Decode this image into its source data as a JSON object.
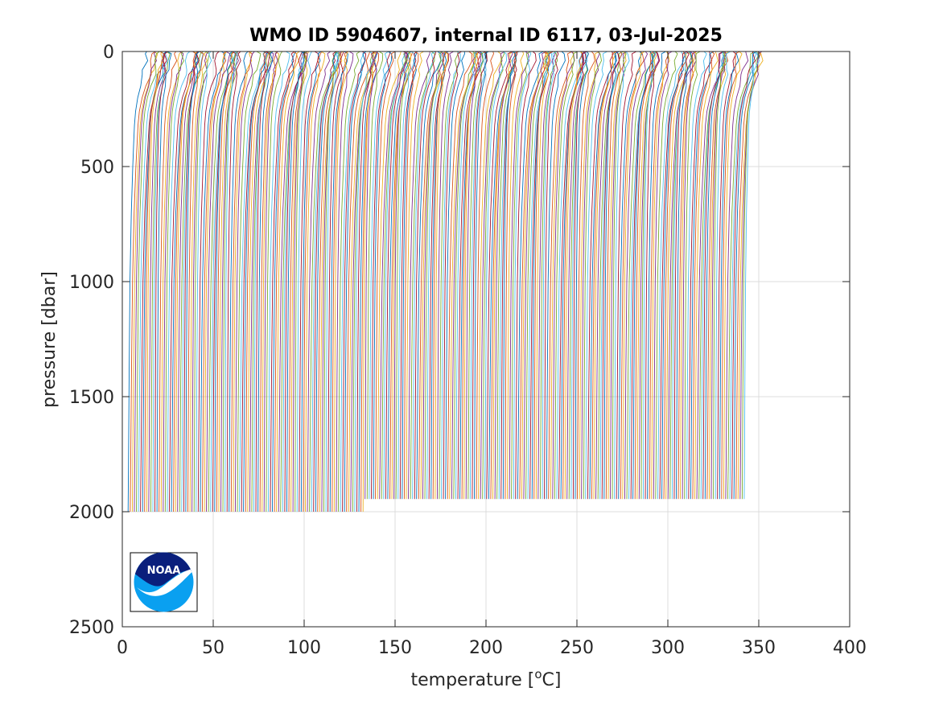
{
  "chart_data": {
    "type": "line",
    "title": "WMO ID 5904607, internal ID 6117, 03-Jul-2025",
    "xlabel": "temperature [",
    "xlabel_superscript": "o",
    "xlabel_suffix": "C]",
    "ylabel": "pressure [dbar]",
    "xlim": [
      0,
      400
    ],
    "ylim": [
      0,
      2500
    ],
    "y_reversed": true,
    "grid": true,
    "x_ticks": [
      0,
      50,
      100,
      150,
      200,
      250,
      300,
      350,
      400
    ],
    "y_ticks": [
      0,
      500,
      1000,
      1500,
      2000,
      2500
    ],
    "x_tick_labels": [
      "0",
      "50",
      "100",
      "150",
      "200",
      "250",
      "300",
      "350",
      "400"
    ],
    "y_tick_labels": [
      "0",
      "500",
      "1000",
      "1500",
      "2000",
      "2500"
    ],
    "profile_offset_note": "Successive profiles offset horizontally",
    "profile_count": 300,
    "first_profile": {
      "surface_temp": 13.5,
      "deep_temp": 3.2,
      "max_pressure": 2000
    },
    "last_profile": {
      "surface_temp": 355,
      "deep_temp": 342,
      "max_pressure": 1945
    },
    "pressure_change_at_temp": 133,
    "series_colors": [
      "#0072BD",
      "#D95319",
      "#EDB120",
      "#7E2F8E",
      "#77AC30",
      "#4DBEEE",
      "#A2142F"
    ],
    "logo": {
      "text": "NOAA",
      "color_dark": "#0a1f7c",
      "color_light": "#0aa0f0"
    }
  }
}
